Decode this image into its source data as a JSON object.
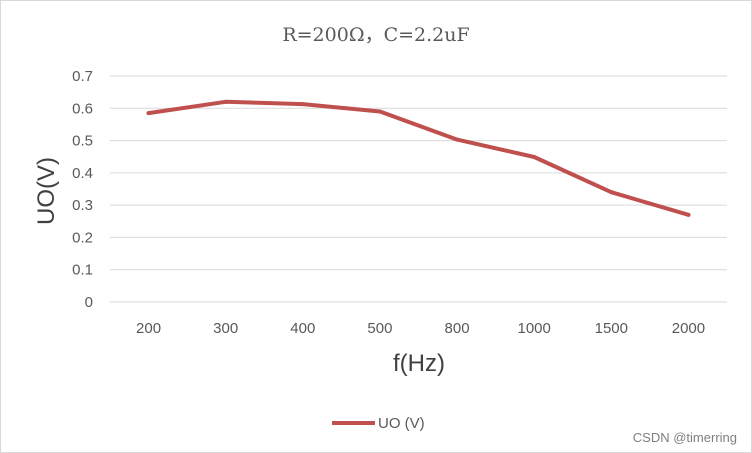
{
  "watermark": "CSDN @timerring",
  "chart_data": {
    "type": "line",
    "title": "R=200Ω，C=2.2uF",
    "xlabel": "f(Hz)",
    "ylabel": "UO(V)",
    "categories": [
      "200",
      "300",
      "400",
      "500",
      "800",
      "1000",
      "1500",
      "2000"
    ],
    "ylim": [
      0,
      0.7
    ],
    "yticks": [
      "0",
      "0.1",
      "0.2",
      "0.3",
      "0.4",
      "0.5",
      "0.6",
      "0.7"
    ],
    "grid": true,
    "legend_position": "bottom",
    "series": [
      {
        "name": "UO (V)",
        "color": "#c0504d",
        "values": [
          0.585,
          0.62,
          0.613,
          0.59,
          0.503,
          0.449,
          0.34,
          0.27
        ]
      }
    ]
  }
}
